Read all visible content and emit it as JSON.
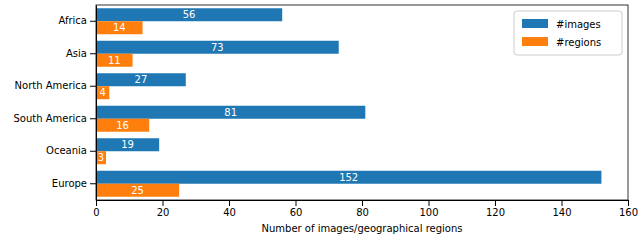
{
  "chart_data": {
    "type": "bar",
    "orientation": "horizontal",
    "categories": [
      "Africa",
      "Asia",
      "North America",
      "South America",
      "Oceania",
      "Europe"
    ],
    "series": [
      {
        "name": "#images",
        "color": "#1f77b4",
        "values": [
          56,
          73,
          27,
          81,
          19,
          152
        ]
      },
      {
        "name": "#regions",
        "color": "#ff7f0e",
        "values": [
          14,
          11,
          4,
          16,
          3,
          25
        ]
      }
    ],
    "x_label": "Number of images/geographical regions",
    "xlim": [
      0,
      160
    ],
    "xticks": [
      0,
      20,
      40,
      60,
      80,
      100,
      120,
      140,
      160
    ],
    "grid": false,
    "legend": "upper right",
    "data_labels": true
  }
}
